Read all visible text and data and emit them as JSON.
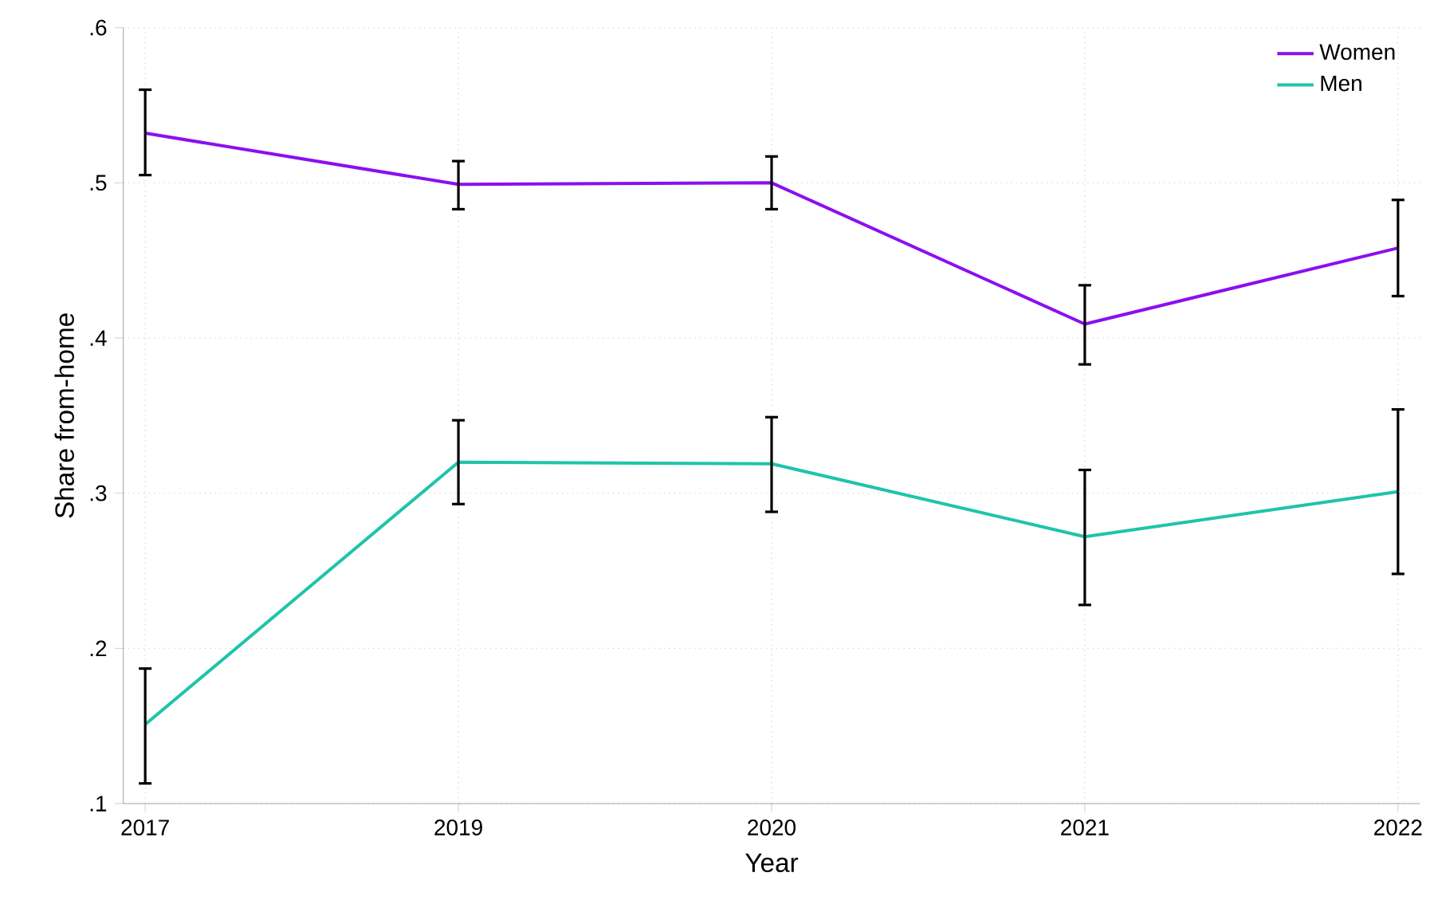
{
  "chart_data": {
    "type": "line",
    "xlabel": "Year",
    "ylabel": "Share from-home",
    "categories": [
      "2017",
      "2019",
      "2020",
      "2021",
      "2022"
    ],
    "ylim": [
      0.1,
      0.6
    ],
    "yticks": [
      {
        "value": 0.1,
        "label": ".1"
      },
      {
        "value": 0.2,
        "label": ".2"
      },
      {
        "value": 0.3,
        "label": ".3"
      },
      {
        "value": 0.4,
        "label": ".4"
      },
      {
        "value": 0.5,
        "label": ".5"
      },
      {
        "value": 0.6,
        "label": ".6"
      }
    ],
    "grid": true,
    "legend": "top right",
    "marker": "none",
    "line_style": "solid",
    "series": [
      {
        "name": "Women",
        "color": "#8b0ff0",
        "values": [
          0.532,
          0.499,
          0.5,
          0.409,
          0.458
        ],
        "errors": [
          [
            0.505,
            0.56
          ],
          [
            0.483,
            0.514
          ],
          [
            0.483,
            0.517
          ],
          [
            0.383,
            0.434
          ],
          [
            0.427,
            0.489
          ]
        ]
      },
      {
        "name": "Men",
        "color": "#1fc4aa",
        "values": [
          0.151,
          0.32,
          0.319,
          0.272,
          0.301
        ],
        "errors": [
          [
            0.113,
            0.187
          ],
          [
            0.293,
            0.347
          ],
          [
            0.288,
            0.349
          ],
          [
            0.228,
            0.315
          ],
          [
            0.248,
            0.354
          ]
        ]
      }
    ]
  }
}
